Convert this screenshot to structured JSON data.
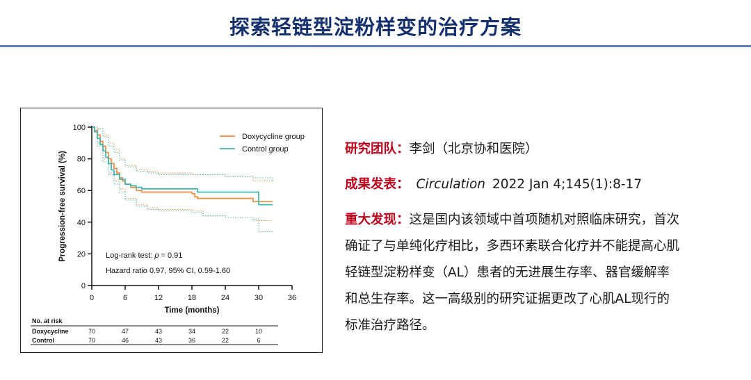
{
  "slide": {
    "title": "探索轻链型淀粉样变的治疗方案"
  },
  "info": {
    "team_label": "研究团队：",
    "team_value": "李剑（北京协和医院）",
    "pub_label": "成果发表：",
    "pub_journal": "Circulation",
    "pub_citation": "2022 Jan 4;145(1):8-17",
    "finding_label": "重大发现：",
    "finding_lines": [
      "这是国内该领域中首项随机对照临床研究，首次",
      "确证了与单纯化疗相比，多西环素联合化疗并不能提高心肌",
      "轻链型淀粉样变（AL）患者的无进展生存率、器官缓解率",
      "和总生存率。这一高级别的研究证据更改了心肌AL现行的",
      "标准治疗路径。"
    ]
  },
  "chart_data": {
    "type": "line",
    "step": true,
    "ylabel": "Progression-free survival (%)",
    "xlabel": "Time (months)",
    "xlim": [
      0,
      36
    ],
    "ylim": [
      0,
      100
    ],
    "xticks": [
      0,
      6,
      12,
      18,
      24,
      30,
      36
    ],
    "yticks": [
      0,
      20,
      40,
      60,
      80,
      100
    ],
    "legend_position": "top-right",
    "series": [
      {
        "name": "Doxycycline group",
        "color": "#f08a3c",
        "x": [
          0,
          0.5,
          1,
          1.5,
          2,
          2.5,
          3,
          3.5,
          4,
          4.5,
          5,
          5.5,
          6,
          7,
          8,
          9,
          12,
          18,
          18.5,
          19,
          24,
          28,
          29,
          30,
          32.5
        ],
        "y": [
          100,
          98,
          95,
          91,
          88,
          84,
          80,
          77,
          74,
          71,
          68,
          66,
          64,
          62,
          60,
          59,
          59,
          58,
          56,
          55,
          55,
          55,
          53,
          53,
          53
        ],
        "ci_upper_x": [
          0,
          1,
          2,
          3,
          4,
          5,
          6,
          8,
          10,
          12,
          18,
          24,
          29,
          32.5
        ],
        "ci_upper_y": [
          100,
          99,
          95,
          90,
          86,
          80,
          76,
          73,
          72,
          71,
          70,
          69,
          66,
          65
        ],
        "ci_lower_x": [
          0,
          1,
          2,
          3,
          4,
          5,
          6,
          8,
          10,
          12,
          18,
          20,
          24,
          29,
          32.5
        ],
        "ci_lower_y": [
          100,
          90,
          80,
          71,
          66,
          61,
          55,
          51,
          49,
          48,
          47,
          44,
          43,
          41,
          41
        ]
      },
      {
        "name": "Control group",
        "color": "#3fb3b0",
        "x": [
          0,
          0.5,
          1,
          1.5,
          2,
          2.5,
          3,
          3.5,
          4,
          5,
          6,
          7,
          8,
          9,
          12,
          18,
          19,
          24,
          29,
          30,
          32.5
        ],
        "y": [
          100,
          97,
          93,
          89,
          85,
          81,
          77,
          73,
          70,
          67,
          64,
          63,
          62,
          61,
          61,
          61,
          59,
          59,
          59,
          51,
          51
        ],
        "ci_upper_x": [
          0,
          1,
          2,
          3,
          4,
          5,
          6,
          8,
          10,
          12,
          18,
          24,
          29,
          32.5
        ],
        "ci_upper_y": [
          100,
          99,
          94,
          88,
          84,
          79,
          75,
          72,
          71,
          70,
          70,
          69,
          68,
          66
        ],
        "ci_lower_x": [
          0,
          1,
          2,
          3,
          4,
          5,
          6,
          8,
          10,
          12,
          18,
          20,
          24,
          29,
          30,
          32.5
        ],
        "ci_lower_y": [
          100,
          88,
          78,
          70,
          64,
          59,
          54,
          50,
          48,
          47,
          46,
          44,
          43,
          42,
          34,
          34
        ]
      }
    ],
    "annotations": [
      {
        "text_parts": [
          "Log-rank test: ",
          "p",
          " = 0.91"
        ]
      },
      {
        "text": "Hazard ratio 0.97, 95% CI, 0.59-1.60"
      }
    ],
    "risk_table": {
      "title": "No. at risk",
      "times": [
        0,
        6,
        12,
        18,
        24,
        30
      ],
      "rows": [
        {
          "label": "Doxycycline",
          "values": [
            "70",
            "47",
            "43",
            "34",
            "22",
            "10"
          ]
        },
        {
          "label": "Control",
          "values": [
            "70",
            "46",
            "43",
            "36",
            "22",
            "6"
          ]
        }
      ]
    }
  }
}
